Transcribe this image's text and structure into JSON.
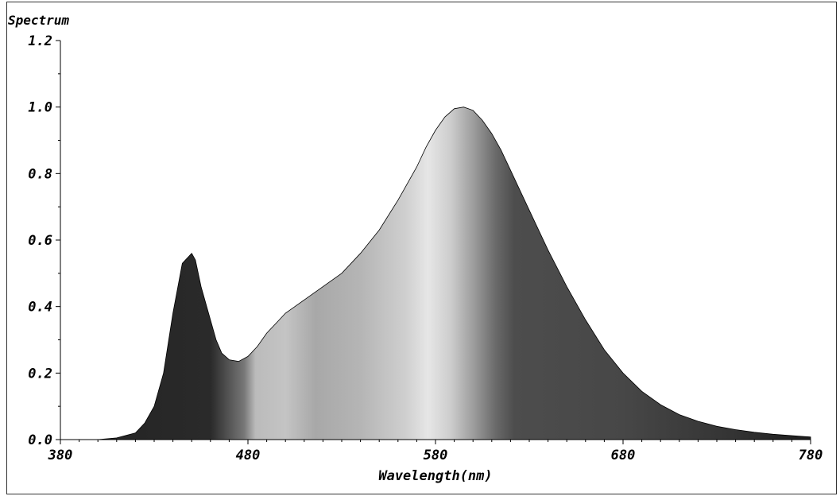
{
  "chart_data": {
    "type": "area",
    "title": "Spectrum",
    "xlabel": "Wavelength(nm)",
    "ylabel": "",
    "xlim": [
      380,
      780
    ],
    "ylim": [
      0,
      1.2
    ],
    "xticks": [
      380,
      480,
      580,
      680,
      780
    ],
    "xtick_labels": [
      "380",
      "480",
      "580",
      "680",
      "780"
    ],
    "yticks": [
      0,
      0.2,
      0.4,
      0.6,
      0.8,
      1.0,
      1.2
    ],
    "ytick_labels": [
      "0.0",
      "0.2",
      "0.4",
      "0.6",
      "0.8",
      "1.0",
      "1.2"
    ],
    "grid": false,
    "series": [
      {
        "x": [
          400,
          410,
          420,
          425,
          430,
          435,
          440,
          445,
          450,
          452,
          455,
          458,
          460,
          463,
          466,
          470,
          475,
          480,
          485,
          490,
          495,
          500,
          505,
          510,
          520,
          530,
          540,
          550,
          560,
          570,
          575,
          580,
          585,
          590,
          595,
          600,
          605,
          610,
          615,
          620,
          625,
          630,
          640,
          650,
          660,
          670,
          680,
          690,
          700,
          710,
          720,
          730,
          740,
          750,
          760,
          770,
          780
        ],
        "values": [
          0.0,
          0.005,
          0.02,
          0.05,
          0.1,
          0.2,
          0.38,
          0.53,
          0.56,
          0.54,
          0.46,
          0.4,
          0.36,
          0.3,
          0.26,
          0.24,
          0.235,
          0.25,
          0.28,
          0.32,
          0.35,
          0.38,
          0.4,
          0.42,
          0.46,
          0.5,
          0.56,
          0.63,
          0.72,
          0.82,
          0.88,
          0.93,
          0.97,
          0.995,
          1.0,
          0.99,
          0.96,
          0.92,
          0.87,
          0.81,
          0.75,
          0.69,
          0.57,
          0.46,
          0.36,
          0.27,
          0.2,
          0.145,
          0.105,
          0.075,
          0.055,
          0.04,
          0.03,
          0.022,
          0.016,
          0.012,
          0.008
        ]
      }
    ]
  }
}
